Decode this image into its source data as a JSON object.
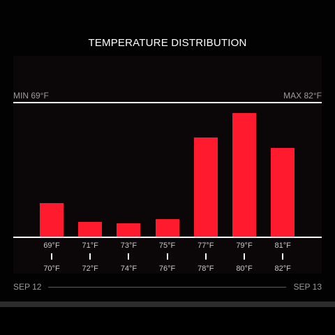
{
  "header": {
    "title": "TEMPERATURE DISTRIBUTION"
  },
  "range": {
    "min_label": "MIN 69°F",
    "max_label": "MAX 82°F"
  },
  "dates": {
    "start": "SEP 12",
    "end": "SEP 13"
  },
  "colors": {
    "bar": "#ff1a2d",
    "background": "#000000",
    "text": "#ffffff"
  },
  "chart_data": {
    "type": "bar",
    "title": "TEMPERATURE DISTRIBUTION",
    "categories": [
      "69°F–70°F",
      "71°F–72°F",
      "73°F–74°F",
      "75°F–76°F",
      "77°F–78°F",
      "79°F–80°F",
      "81°F–82°F"
    ],
    "bin_low_labels": [
      "69°F",
      "71°F",
      "73°F",
      "75°F",
      "77°F",
      "79°F",
      "81°F"
    ],
    "bin_high_labels": [
      "70°F",
      "72°F",
      "74°F",
      "76°F",
      "78°F",
      "80°F",
      "82°F"
    ],
    "values": [
      0.25,
      0.11,
      0.1,
      0.13,
      0.74,
      0.92,
      0.66
    ],
    "ylim": [
      0,
      1
    ],
    "grid": false
  }
}
